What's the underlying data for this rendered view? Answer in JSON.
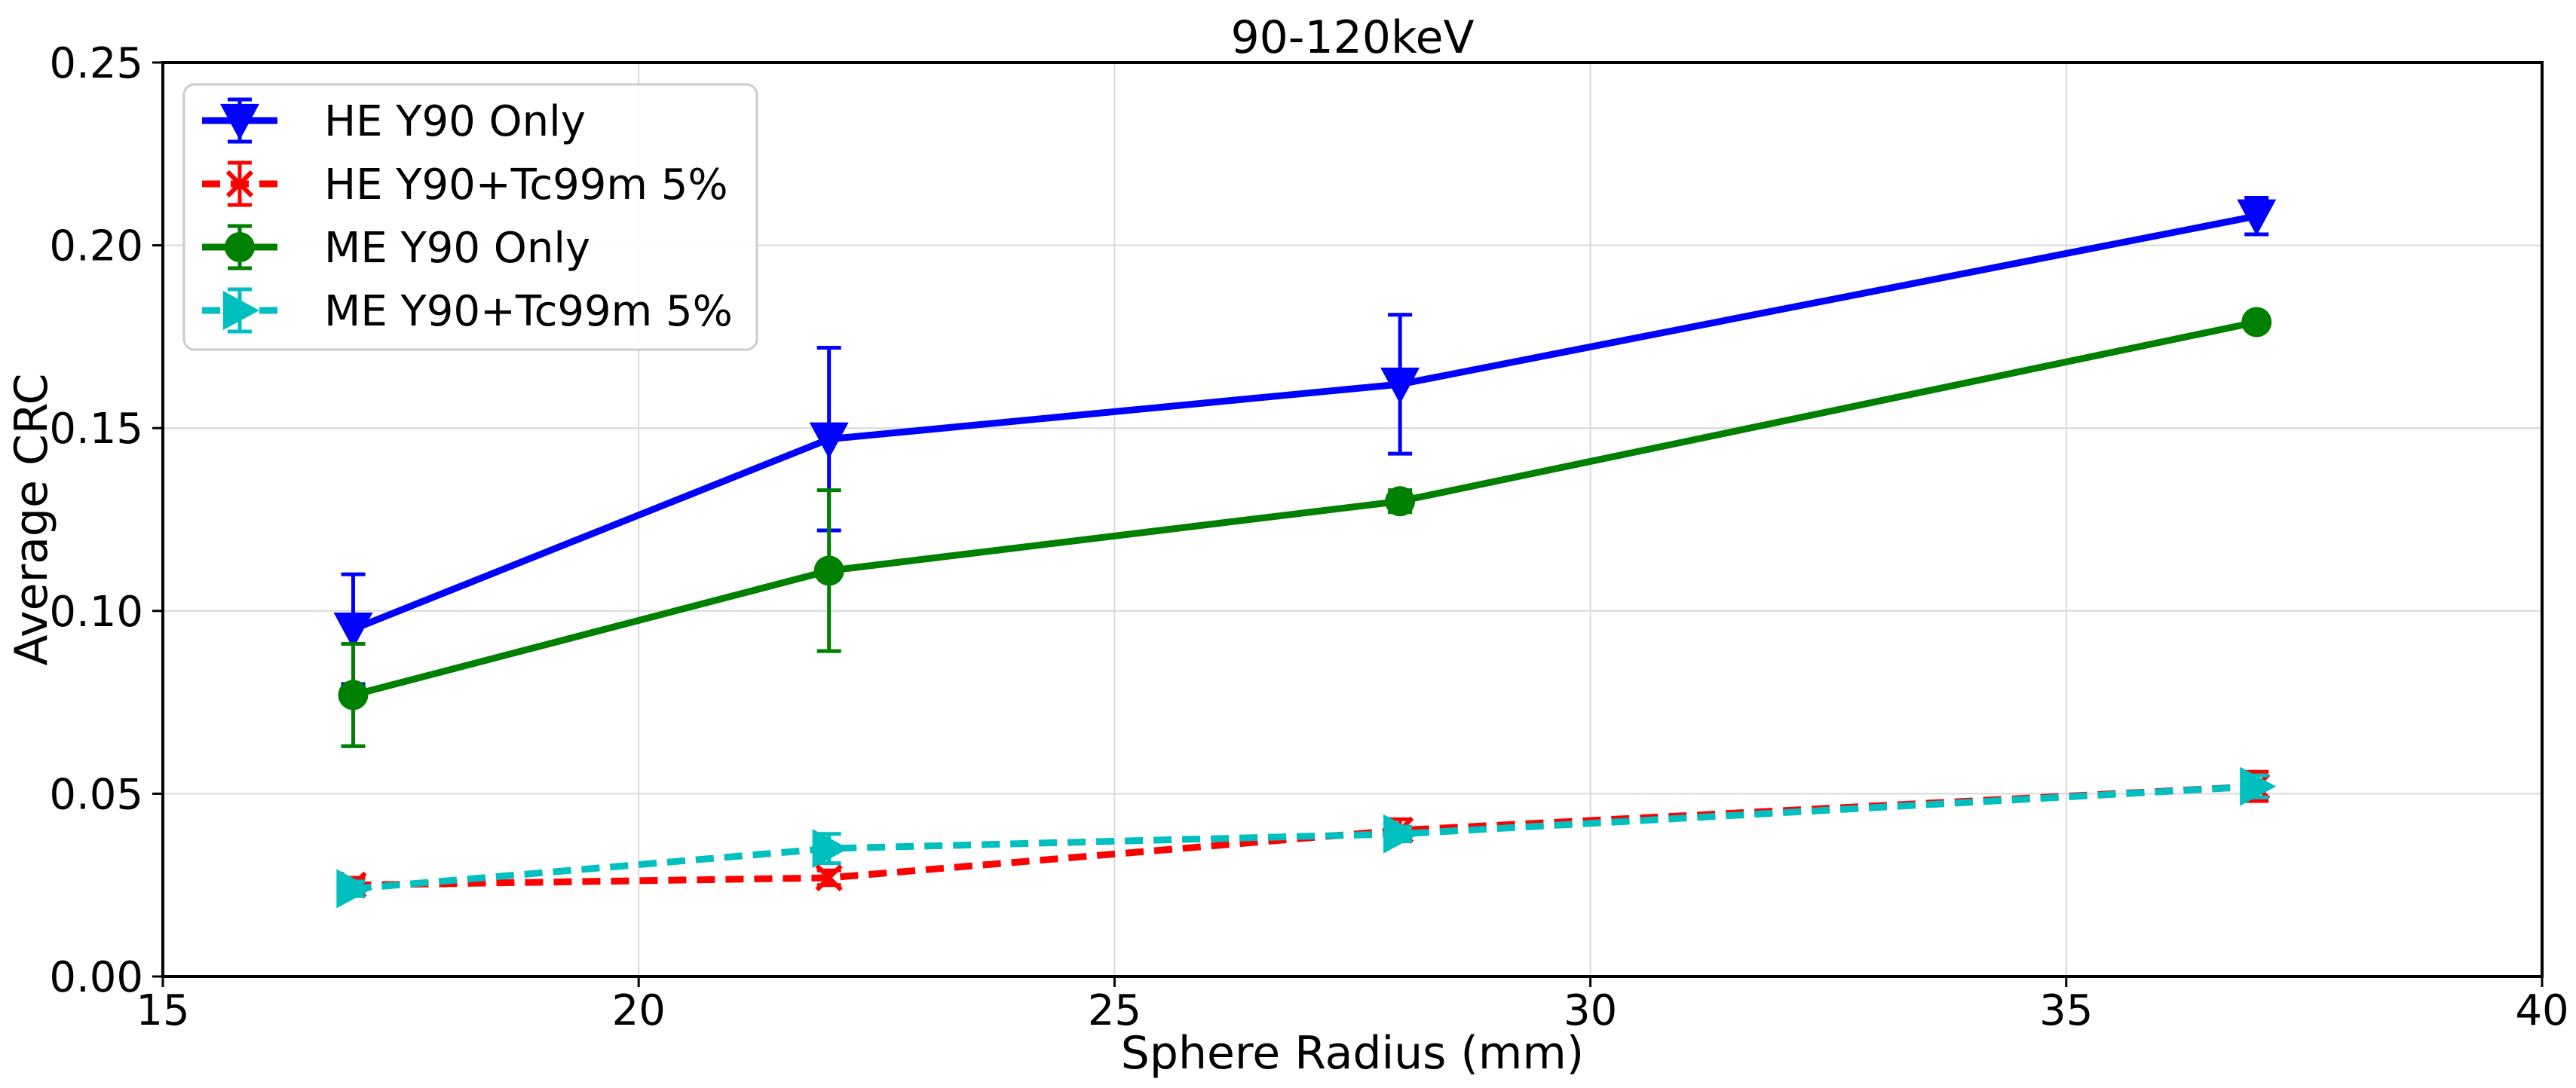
{
  "chart_data": {
    "type": "line",
    "title": "90-120keV",
    "xlabel": "Sphere Radius (mm)",
    "ylabel": "Average CRC",
    "xlim": [
      15,
      40
    ],
    "ylim": [
      0,
      0.25
    ],
    "xticks": [
      15,
      20,
      25,
      30,
      35,
      40
    ],
    "yticks": [
      0.0,
      0.05,
      0.1,
      0.15,
      0.2,
      0.25
    ],
    "xtick_labels": [
      "15",
      "20",
      "25",
      "30",
      "35",
      "40"
    ],
    "ytick_labels": [
      "0.00",
      "0.05",
      "0.10",
      "0.15",
      "0.20",
      "0.25"
    ],
    "grid": true,
    "legend_position": "top-left",
    "series": [
      {
        "name": "HE Y90 Only",
        "color": "#0000ff",
        "linestyle": "solid",
        "marker": "triangle-down",
        "x": [
          17,
          22,
          28,
          37
        ],
        "y": [
          0.095,
          0.147,
          0.162,
          0.208
        ],
        "err": [
          0.015,
          0.025,
          0.019,
          0.005
        ]
      },
      {
        "name": "HE Y90+Tc99m 5%",
        "color": "#ff0000",
        "linestyle": "dashed",
        "marker": "x",
        "x": [
          17,
          22,
          28,
          37
        ],
        "y": [
          0.025,
          0.027,
          0.04,
          0.052
        ],
        "err": [
          0.002,
          0.002,
          0.003,
          0.004
        ]
      },
      {
        "name": "ME Y90 Only",
        "color": "#008000",
        "linestyle": "solid",
        "marker": "circle",
        "x": [
          17,
          22,
          28,
          37
        ],
        "y": [
          0.077,
          0.111,
          0.13,
          0.179
        ],
        "err": [
          0.014,
          0.022,
          0.003,
          0.002
        ]
      },
      {
        "name": "ME Y90+Tc99m 5%",
        "color": "#00bfbf",
        "linestyle": "dashed",
        "marker": "triangle-right",
        "x": [
          17,
          22,
          28,
          37
        ],
        "y": [
          0.024,
          0.035,
          0.039,
          0.052
        ],
        "err": [
          0.002,
          0.004,
          0.002,
          0.003
        ]
      }
    ]
  }
}
